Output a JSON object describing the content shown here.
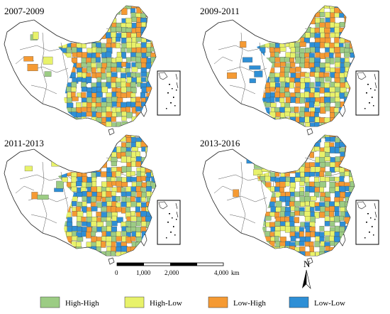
{
  "panels": [
    {
      "title": "2007-2009"
    },
    {
      "title": "2009-2011"
    },
    {
      "title": "2011-2013"
    },
    {
      "title": "2013-2016"
    }
  ],
  "scale_bar": {
    "ticks": [
      "0",
      "1,000",
      "2,000",
      "4,000"
    ],
    "unit": "km"
  },
  "north_arrow": {
    "label": "N"
  },
  "legend": [
    {
      "label": "High-High",
      "color": "#9ccc84"
    },
    {
      "label": "High-Low",
      "color": "#e8f26a"
    },
    {
      "label": "Low-High",
      "color": "#f59a33"
    },
    {
      "label": "Low-Low",
      "color": "#2e8fd6"
    }
  ]
}
